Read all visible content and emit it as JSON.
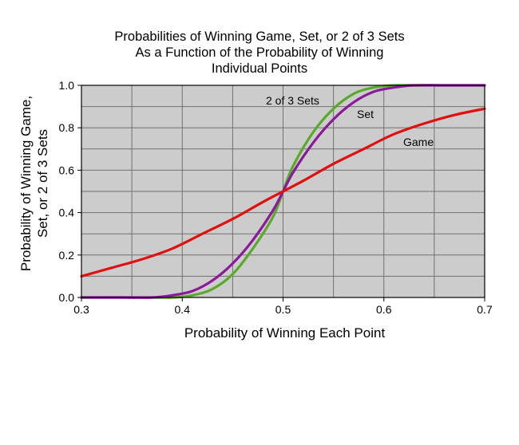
{
  "chart_data": {
    "type": "line",
    "title": [
      "Probabilities of Winning Game, Set, or 2 of 3 Sets",
      "As a Function of the Probability of Winning",
      "Individual Points"
    ],
    "xlabel": "Probability of Winning Each Point",
    "ylabel": [
      "Probability of Winning Game,",
      "Set, or 2 of 3 Sets"
    ],
    "xlim": [
      0.3,
      0.7
    ],
    "ylim": [
      0.0,
      1.0
    ],
    "xticks": [
      0.3,
      0.4,
      0.5,
      0.6,
      0.7
    ],
    "yticks": [
      0.0,
      0.2,
      0.4,
      0.6,
      0.8,
      1.0
    ],
    "xtick_labels": [
      "0.3",
      "0.4",
      "0.5",
      "0.6",
      "0.7"
    ],
    "ytick_labels": [
      "0.0",
      "0.2",
      "0.4",
      "0.6",
      "0.8",
      "1.0"
    ],
    "grid": true,
    "plot_background": "#cccccc",
    "series": [
      {
        "name": "Game",
        "color": "#e01010",
        "x": [
          0.3,
          0.33,
          0.36,
          0.39,
          0.42,
          0.45,
          0.48,
          0.5,
          0.52,
          0.55,
          0.58,
          0.61,
          0.64,
          0.67,
          0.7
        ],
        "values": [
          0.1,
          0.14,
          0.18,
          0.23,
          0.3,
          0.37,
          0.45,
          0.5,
          0.55,
          0.63,
          0.7,
          0.77,
          0.82,
          0.86,
          0.89
        ]
      },
      {
        "name": "Set",
        "color": "#8a1a9a",
        "x": [
          0.3,
          0.34,
          0.37,
          0.39,
          0.41,
          0.43,
          0.45,
          0.47,
          0.49,
          0.5,
          0.51,
          0.53,
          0.55,
          0.57,
          0.59,
          0.61,
          0.63,
          0.66,
          0.7
        ],
        "values": [
          0.0,
          0.0,
          0.0,
          0.01,
          0.03,
          0.08,
          0.16,
          0.27,
          0.41,
          0.5,
          0.59,
          0.73,
          0.84,
          0.92,
          0.97,
          0.99,
          1.0,
          1.0,
          1.0
        ]
      },
      {
        "name": "2 of 3 Sets",
        "color": "#5aaa2a",
        "x": [
          0.3,
          0.36,
          0.39,
          0.41,
          0.43,
          0.45,
          0.47,
          0.49,
          0.5,
          0.51,
          0.53,
          0.55,
          0.57,
          0.59,
          0.61,
          0.64,
          0.7
        ],
        "values": [
          0.0,
          0.0,
          0.0,
          0.01,
          0.04,
          0.11,
          0.23,
          0.38,
          0.5,
          0.62,
          0.78,
          0.89,
          0.96,
          0.99,
          1.0,
          1.0,
          1.0
        ]
      }
    ],
    "annotations": [
      "2 of 3 Sets",
      "Set",
      "Game"
    ]
  }
}
